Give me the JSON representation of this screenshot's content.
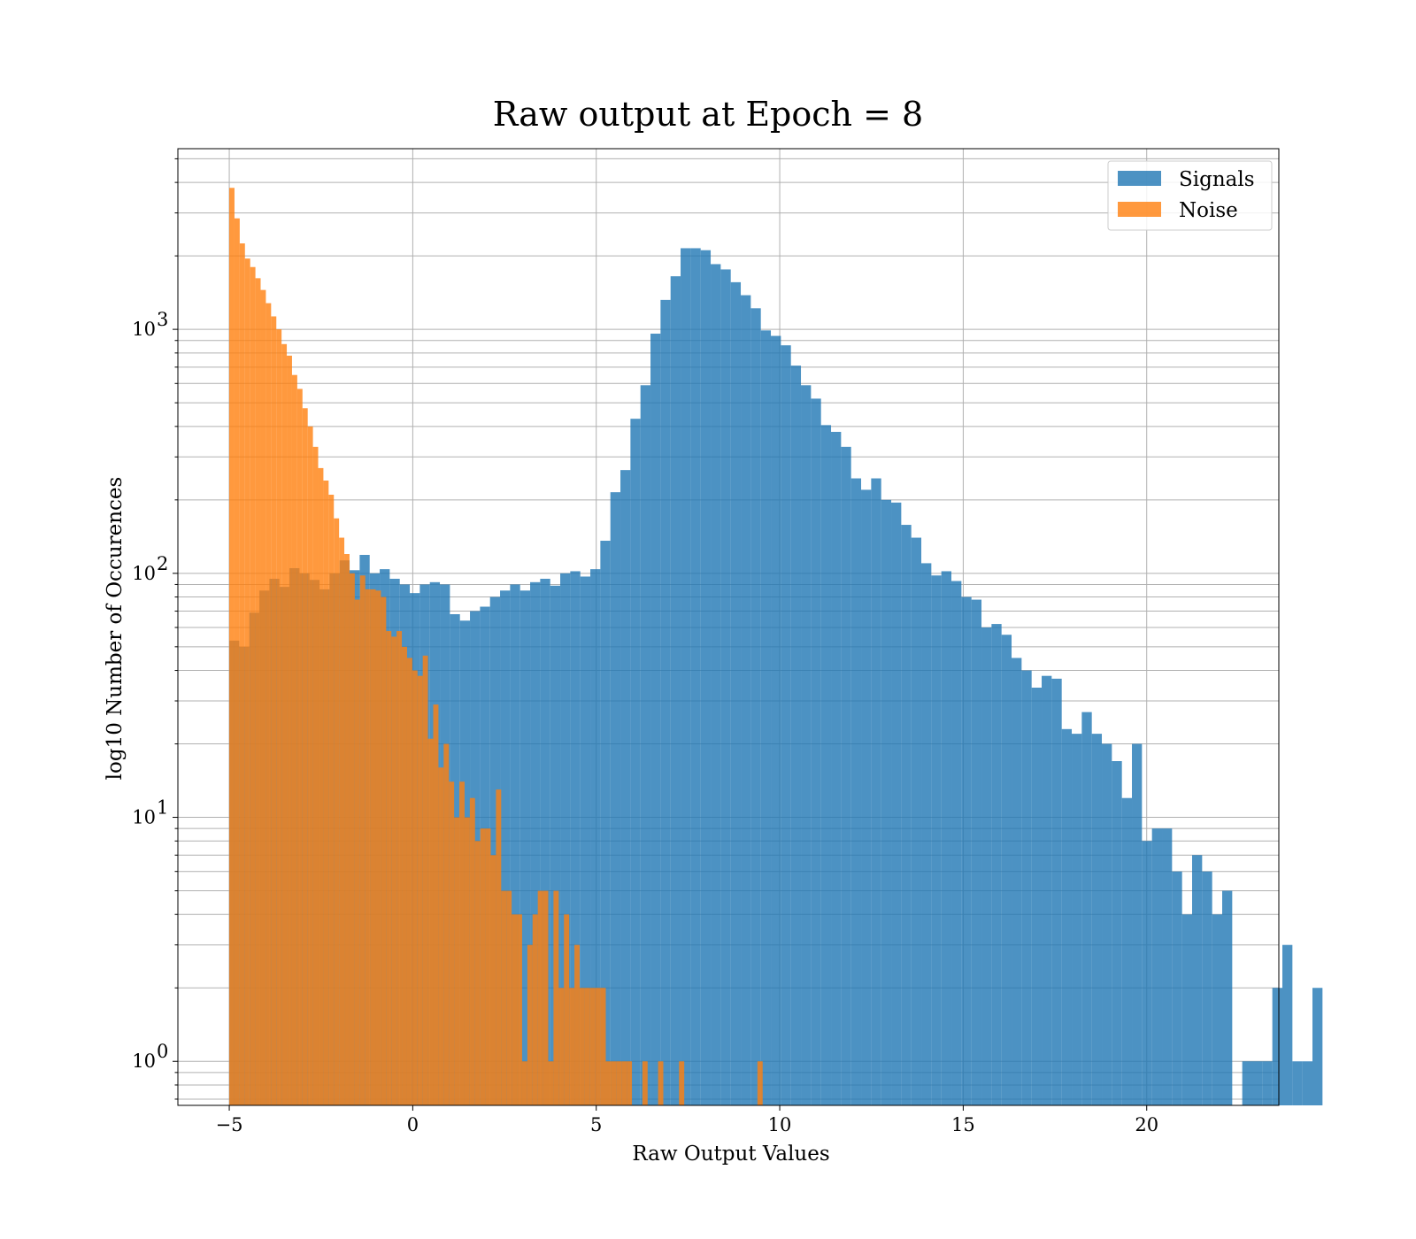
{
  "chart_data": {
    "type": "bar",
    "title": "Raw output at Epoch = 8",
    "xlabel": "Raw Output Values",
    "ylabel": "log10 Number of Occurences",
    "xlim": [
      -6.4,
      23.6
    ],
    "ylim": [
      0.66,
      5500
    ],
    "yscale": "log",
    "grid": true,
    "legend_position": "top-right",
    "x_ticks": [
      -5,
      0,
      5,
      10,
      15,
      20
    ],
    "x_tick_labels": [
      "−5",
      "0",
      "5",
      "10",
      "15",
      "20"
    ],
    "y_major_ticks": [
      1,
      10,
      100,
      1000
    ],
    "y_tick_labels": [
      {
        "base": "10",
        "exp": "0"
      },
      {
        "base": "10",
        "exp": "1"
      },
      {
        "base": "10",
        "exp": "2"
      },
      {
        "base": "10",
        "exp": "3"
      }
    ],
    "series": [
      {
        "name": "Signals",
        "color": "#1f77b4",
        "opacity": 0.8,
        "x_start": -5.0,
        "bin_width": 0.2733,
        "values": [
          53,
          50,
          69,
          85,
          95,
          88,
          105,
          100,
          94,
          86,
          100,
          113,
          103,
          119,
          100,
          104,
          95,
          90,
          83,
          90,
          92,
          90,
          68,
          64,
          70,
          73,
          80,
          85,
          90,
          85,
          92,
          95,
          89,
          100,
          102,
          97,
          104,
          136,
          215,
          265,
          430,
          590,
          960,
          1320,
          1650,
          2150,
          2150,
          2110,
          1850,
          1760,
          1560,
          1380,
          1220,
          990,
          940,
          860,
          710,
          590,
          520,
          405,
          380,
          330,
          245,
          220,
          245,
          200,
          195,
          158,
          140,
          110,
          98,
          102,
          93,
          80,
          78,
          60,
          62,
          56,
          45,
          40,
          34,
          38,
          37,
          23,
          22,
          27,
          22,
          20,
          17,
          12,
          20,
          8,
          9,
          9,
          6,
          4,
          7,
          6,
          4,
          5,
          0,
          1,
          1,
          1,
          2,
          3,
          1,
          1,
          2
        ]
      },
      {
        "name": "Noise",
        "color": "#ff7f0e",
        "opacity": 0.8,
        "x_start": -5.0,
        "bin_width": 0.1425,
        "values": [
          3800,
          2850,
          2250,
          1950,
          1800,
          1620,
          1450,
          1280,
          1130,
          1000,
          870,
          780,
          650,
          570,
          475,
          400,
          330,
          270,
          240,
          210,
          168,
          140,
          120,
          100,
          78,
          98,
          86,
          86,
          85,
          80,
          58,
          55,
          58,
          50,
          45,
          40,
          38,
          46,
          21,
          29,
          16,
          20,
          14,
          10,
          14,
          10,
          12,
          8,
          9,
          9,
          7,
          13,
          5,
          5,
          4,
          4,
          1,
          3,
          4,
          5,
          5,
          1,
          5,
          2,
          4,
          2,
          3,
          2,
          2,
          2,
          2,
          2,
          1,
          1,
          1,
          1,
          1,
          0,
          0,
          1,
          0,
          0,
          1,
          0,
          0,
          0,
          1,
          0,
          0,
          0,
          0,
          0,
          0,
          0,
          0,
          0,
          0,
          0,
          0,
          0,
          0,
          1
        ]
      }
    ]
  }
}
